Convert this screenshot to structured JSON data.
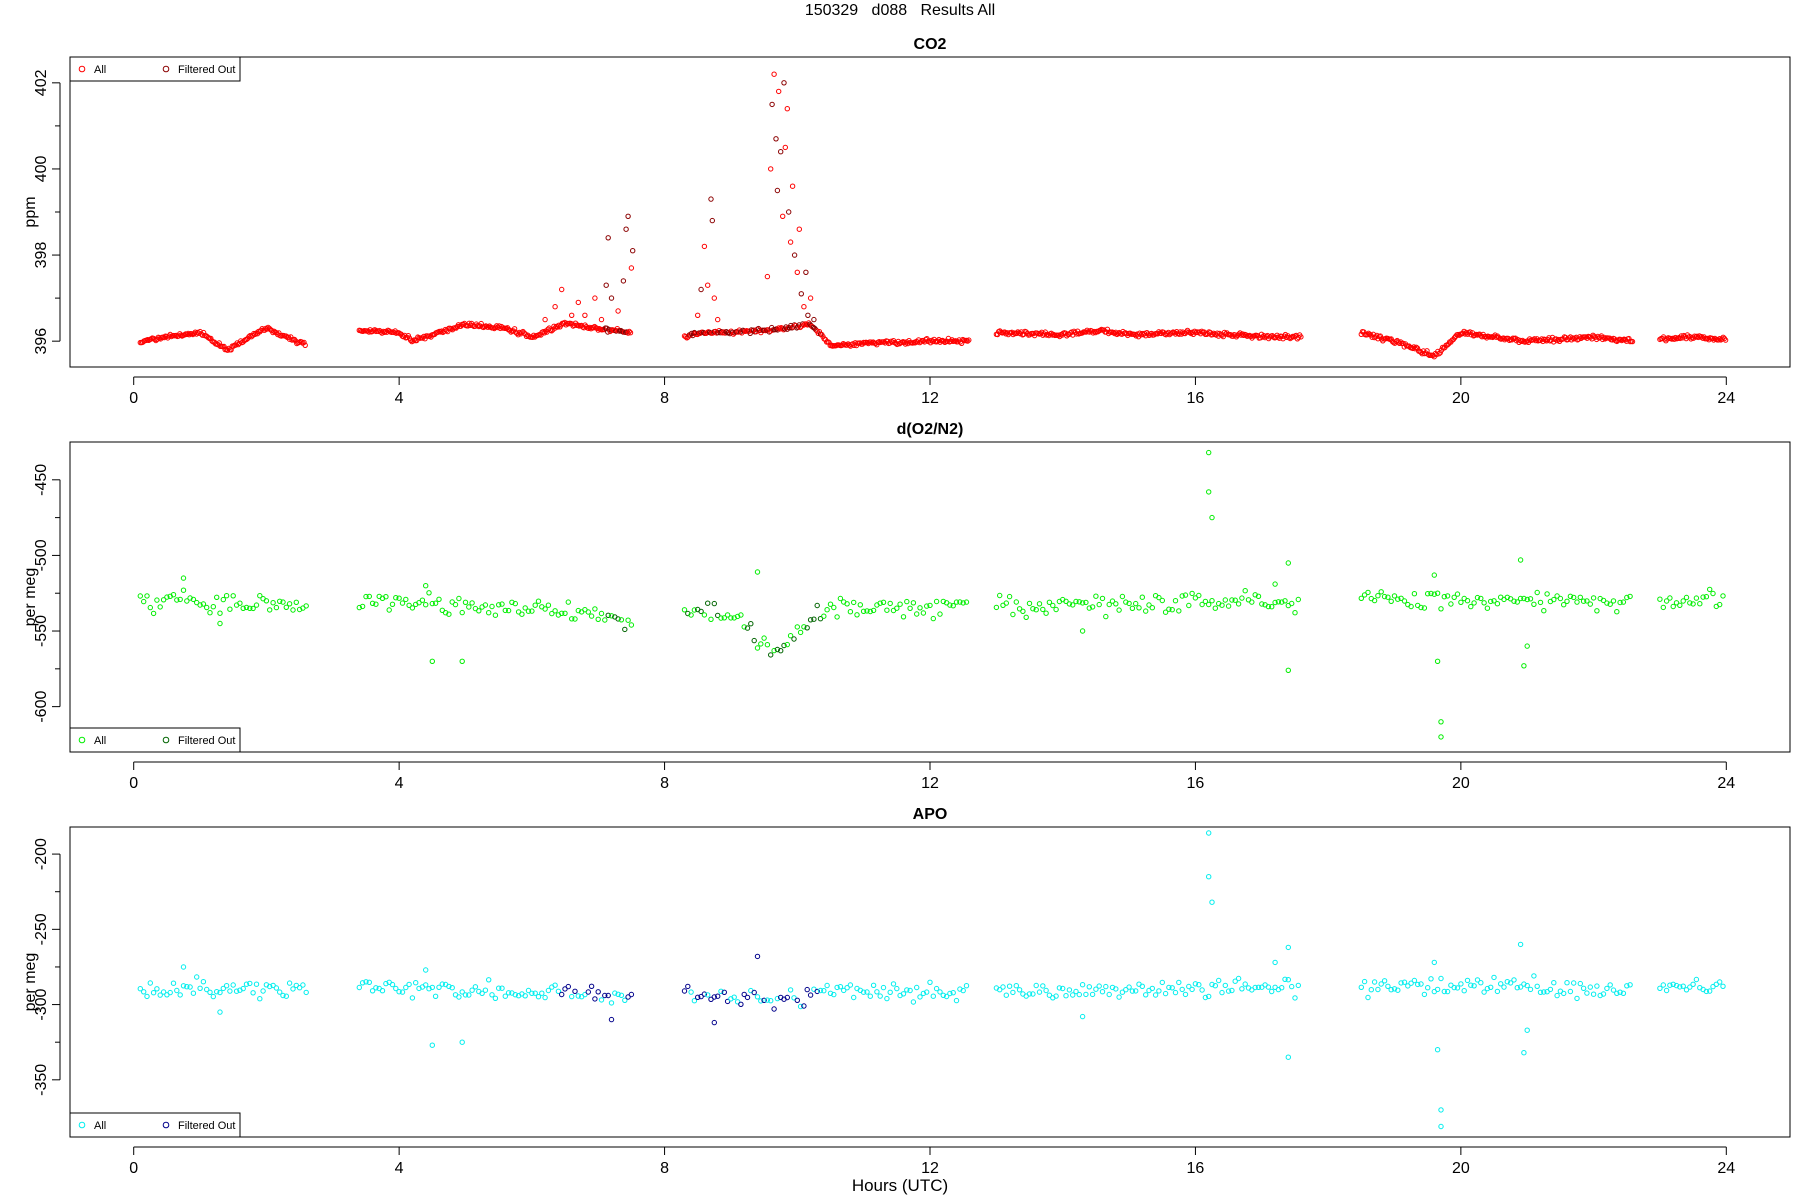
{
  "page": {
    "title": "150329   d088   Results All",
    "xlabel": "Hours (UTC)"
  },
  "chart_data": [
    {
      "type": "scatter",
      "title": "CO2",
      "xlabel": "Hours (UTC)",
      "ylabel": "ppm",
      "xlim": [
        -0.96,
        24.96
      ],
      "ylim": [
        395.4,
        402.6
      ],
      "xticks": [
        0,
        4,
        8,
        12,
        16,
        20,
        24
      ],
      "yticks": [
        396,
        398,
        400,
        402
      ],
      "legend_position": "top-left",
      "legend": [
        "All",
        "Filtered Out"
      ],
      "colors": {
        "all": "#ff0000",
        "filtered": "#8b0000"
      },
      "segments": [
        [
          0.1,
          2.6
        ],
        [
          3.4,
          7.5
        ],
        [
          8.3,
          12.6
        ],
        [
          13.0,
          17.6
        ],
        [
          18.5,
          22.6
        ],
        [
          23.0,
          24.0
        ]
      ],
      "baseline": [
        [
          0.1,
          396.0
        ],
        [
          0.5,
          396.1
        ],
        [
          1.0,
          396.2
        ],
        [
          1.4,
          395.8
        ],
        [
          2.0,
          396.3
        ],
        [
          2.6,
          395.9
        ],
        [
          3.4,
          396.25
        ],
        [
          4.0,
          396.2
        ],
        [
          4.2,
          396.0
        ],
        [
          5.0,
          396.4
        ],
        [
          5.6,
          396.3
        ],
        [
          6.0,
          396.1
        ],
        [
          6.5,
          396.4
        ],
        [
          7.0,
          396.3
        ],
        [
          7.5,
          396.2
        ],
        [
          8.3,
          396.1
        ],
        [
          8.6,
          396.2
        ],
        [
          9.0,
          396.2
        ],
        [
          9.5,
          396.25
        ],
        [
          9.8,
          396.3
        ],
        [
          10.2,
          396.4
        ],
        [
          10.5,
          395.9
        ],
        [
          11.0,
          395.95
        ],
        [
          12.0,
          396.0
        ],
        [
          12.6,
          396.0
        ],
        [
          13.0,
          396.2
        ],
        [
          14.0,
          396.15
        ],
        [
          14.6,
          396.25
        ],
        [
          15.0,
          396.15
        ],
        [
          16.0,
          396.2
        ],
        [
          17.0,
          396.1
        ],
        [
          17.6,
          396.1
        ],
        [
          18.5,
          396.2
        ],
        [
          19.0,
          396.0
        ],
        [
          19.6,
          395.65
        ],
        [
          20.0,
          396.2
        ],
        [
          21.0,
          396.0
        ],
        [
          22.0,
          396.1
        ],
        [
          22.6,
          396.0
        ],
        [
          23.0,
          396.05
        ],
        [
          23.5,
          396.1
        ],
        [
          24.0,
          396.05
        ]
      ],
      "noise": 0.04,
      "step": 0.018,
      "extra_points": [
        [
          6.2,
          396.5
        ],
        [
          6.35,
          396.8
        ],
        [
          6.45,
          397.2
        ],
        [
          6.6,
          396.6
        ],
        [
          6.7,
          396.9
        ],
        [
          6.8,
          396.6
        ],
        [
          6.95,
          397.0
        ],
        [
          7.05,
          396.5
        ],
        [
          7.12,
          397.3
        ],
        [
          7.15,
          398.4
        ],
        [
          7.2,
          397.0
        ],
        [
          7.3,
          396.7
        ],
        [
          7.38,
          397.4
        ],
        [
          7.42,
          398.6
        ],
        [
          7.45,
          398.9
        ],
        [
          7.5,
          397.7
        ],
        [
          7.52,
          398.1
        ],
        [
          8.45,
          396.2
        ],
        [
          8.5,
          396.6
        ],
        [
          8.55,
          397.2
        ],
        [
          8.6,
          398.2
        ],
        [
          8.65,
          397.3
        ],
        [
          8.7,
          399.3
        ],
        [
          8.72,
          398.8
        ],
        [
          8.75,
          397.0
        ],
        [
          8.8,
          396.5
        ],
        [
          9.55,
          397.5
        ],
        [
          9.6,
          400.0
        ],
        [
          9.62,
          401.5
        ],
        [
          9.65,
          402.2
        ],
        [
          9.68,
          400.7
        ],
        [
          9.7,
          399.5
        ],
        [
          9.72,
          401.8
        ],
        [
          9.75,
          400.4
        ],
        [
          9.78,
          398.9
        ],
        [
          9.8,
          402.0
        ],
        [
          9.82,
          400.5
        ],
        [
          9.85,
          401.4
        ],
        [
          9.87,
          399.0
        ],
        [
          9.9,
          398.3
        ],
        [
          9.93,
          399.6
        ],
        [
          9.96,
          398.0
        ],
        [
          10.0,
          397.6
        ],
        [
          10.03,
          398.6
        ],
        [
          10.06,
          397.1
        ],
        [
          10.1,
          396.8
        ],
        [
          10.13,
          397.6
        ],
        [
          10.16,
          396.6
        ],
        [
          10.2,
          397.0
        ],
        [
          10.25,
          396.5
        ]
      ],
      "filtered_range": [
        7.1,
        10.4
      ]
    },
    {
      "type": "scatter",
      "title": "d(O2/N2)",
      "xlabel": "Hours (UTC)",
      "ylabel": "per meg",
      "xlim": [
        -0.96,
        24.96
      ],
      "ylim": [
        -630,
        -425
      ],
      "xticks": [
        0,
        4,
        8,
        12,
        16,
        20,
        24
      ],
      "yticks": [
        -450,
        -500,
        -550,
        -600
      ],
      "legend_position": "bottom-left",
      "legend": [
        "All",
        "Filtered Out"
      ],
      "colors": {
        "all": "#00ee00",
        "filtered": "#006400"
      },
      "segments": [
        [
          0.1,
          2.6
        ],
        [
          3.4,
          7.5
        ],
        [
          8.3,
          12.6
        ],
        [
          13.0,
          17.6
        ],
        [
          18.5,
          22.6
        ],
        [
          23.0,
          24.0
        ]
      ],
      "baseline": [
        [
          0.1,
          -530
        ],
        [
          2.6,
          -533
        ],
        [
          3.4,
          -531
        ],
        [
          6.0,
          -535
        ],
        [
          7.0,
          -540
        ],
        [
          7.5,
          -545
        ],
        [
          8.3,
          -535
        ],
        [
          9.0,
          -540
        ],
        [
          9.7,
          -565
        ],
        [
          10.4,
          -535
        ],
        [
          12.6,
          -533
        ],
        [
          13.0,
          -533
        ],
        [
          17.6,
          -530
        ],
        [
          18.5,
          -527
        ],
        [
          22.6,
          -530
        ],
        [
          23.0,
          -532
        ],
        [
          24.0,
          -528
        ]
      ],
      "noise": 6,
      "step": 0.05,
      "extra_points": [
        [
          0.75,
          -515
        ],
        [
          1.3,
          -545
        ],
        [
          4.4,
          -520
        ],
        [
          4.5,
          -570
        ],
        [
          4.95,
          -570
        ],
        [
          9.4,
          -511
        ],
        [
          14.3,
          -550
        ],
        [
          16.2,
          -432
        ],
        [
          16.2,
          -458
        ],
        [
          16.25,
          -475
        ],
        [
          17.2,
          -519
        ],
        [
          17.4,
          -505
        ],
        [
          17.4,
          -576
        ],
        [
          19.6,
          -513
        ],
        [
          19.65,
          -570
        ],
        [
          19.7,
          -610
        ],
        [
          19.7,
          -620
        ],
        [
          20.9,
          -503
        ],
        [
          20.95,
          -573
        ],
        [
          21.0,
          -560
        ]
      ],
      "filtered_range": [
        7.1,
        10.4
      ]
    },
    {
      "type": "scatter",
      "title": "APO",
      "xlabel": "Hours (UTC)",
      "ylabel": "per meg",
      "xlim": [
        -0.96,
        24.96
      ],
      "ylim": [
        -388,
        -182
      ],
      "xticks": [
        0,
        4,
        8,
        12,
        16,
        20,
        24
      ],
      "yticks": [
        -200,
        -250,
        -300,
        -350
      ],
      "legend_position": "bottom-left",
      "legend": [
        "All",
        "Filtered Out"
      ],
      "colors": {
        "all": "#00eeee",
        "filtered": "#00008b"
      },
      "segments": [
        [
          0.1,
          2.6
        ],
        [
          3.4,
          7.5
        ],
        [
          8.3,
          12.6
        ],
        [
          13.0,
          17.6
        ],
        [
          18.5,
          22.6
        ],
        [
          23.0,
          24.0
        ]
      ],
      "baseline": [
        [
          0.1,
          -289
        ],
        [
          2.6,
          -291
        ],
        [
          3.4,
          -289
        ],
        [
          7.5,
          -293
        ],
        [
          8.3,
          -293
        ],
        [
          9.7,
          -298
        ],
        [
          10.4,
          -290
        ],
        [
          12.6,
          -292
        ],
        [
          13.0,
          -291
        ],
        [
          17.6,
          -289
        ],
        [
          18.5,
          -287
        ],
        [
          22.6,
          -290
        ],
        [
          23.0,
          -290
        ],
        [
          24.0,
          -287
        ]
      ],
      "noise": 5,
      "step": 0.05,
      "extra_points": [
        [
          0.75,
          -275
        ],
        [
          1.3,
          -305
        ],
        [
          4.4,
          -277
        ],
        [
          4.5,
          -327
        ],
        [
          4.95,
          -325
        ],
        [
          7.2,
          -310
        ],
        [
          8.75,
          -312
        ],
        [
          9.4,
          -268
        ],
        [
          14.3,
          -308
        ],
        [
          16.2,
          -186
        ],
        [
          16.2,
          -215
        ],
        [
          16.25,
          -232
        ],
        [
          17.2,
          -272
        ],
        [
          17.4,
          -262
        ],
        [
          17.4,
          -335
        ],
        [
          19.6,
          -272
        ],
        [
          19.65,
          -330
        ],
        [
          19.7,
          -370
        ],
        [
          19.7,
          -381
        ],
        [
          20.9,
          -260
        ],
        [
          20.95,
          -332
        ],
        [
          21.0,
          -317
        ]
      ],
      "filtered_range": [
        6.4,
        10.4
      ]
    }
  ]
}
